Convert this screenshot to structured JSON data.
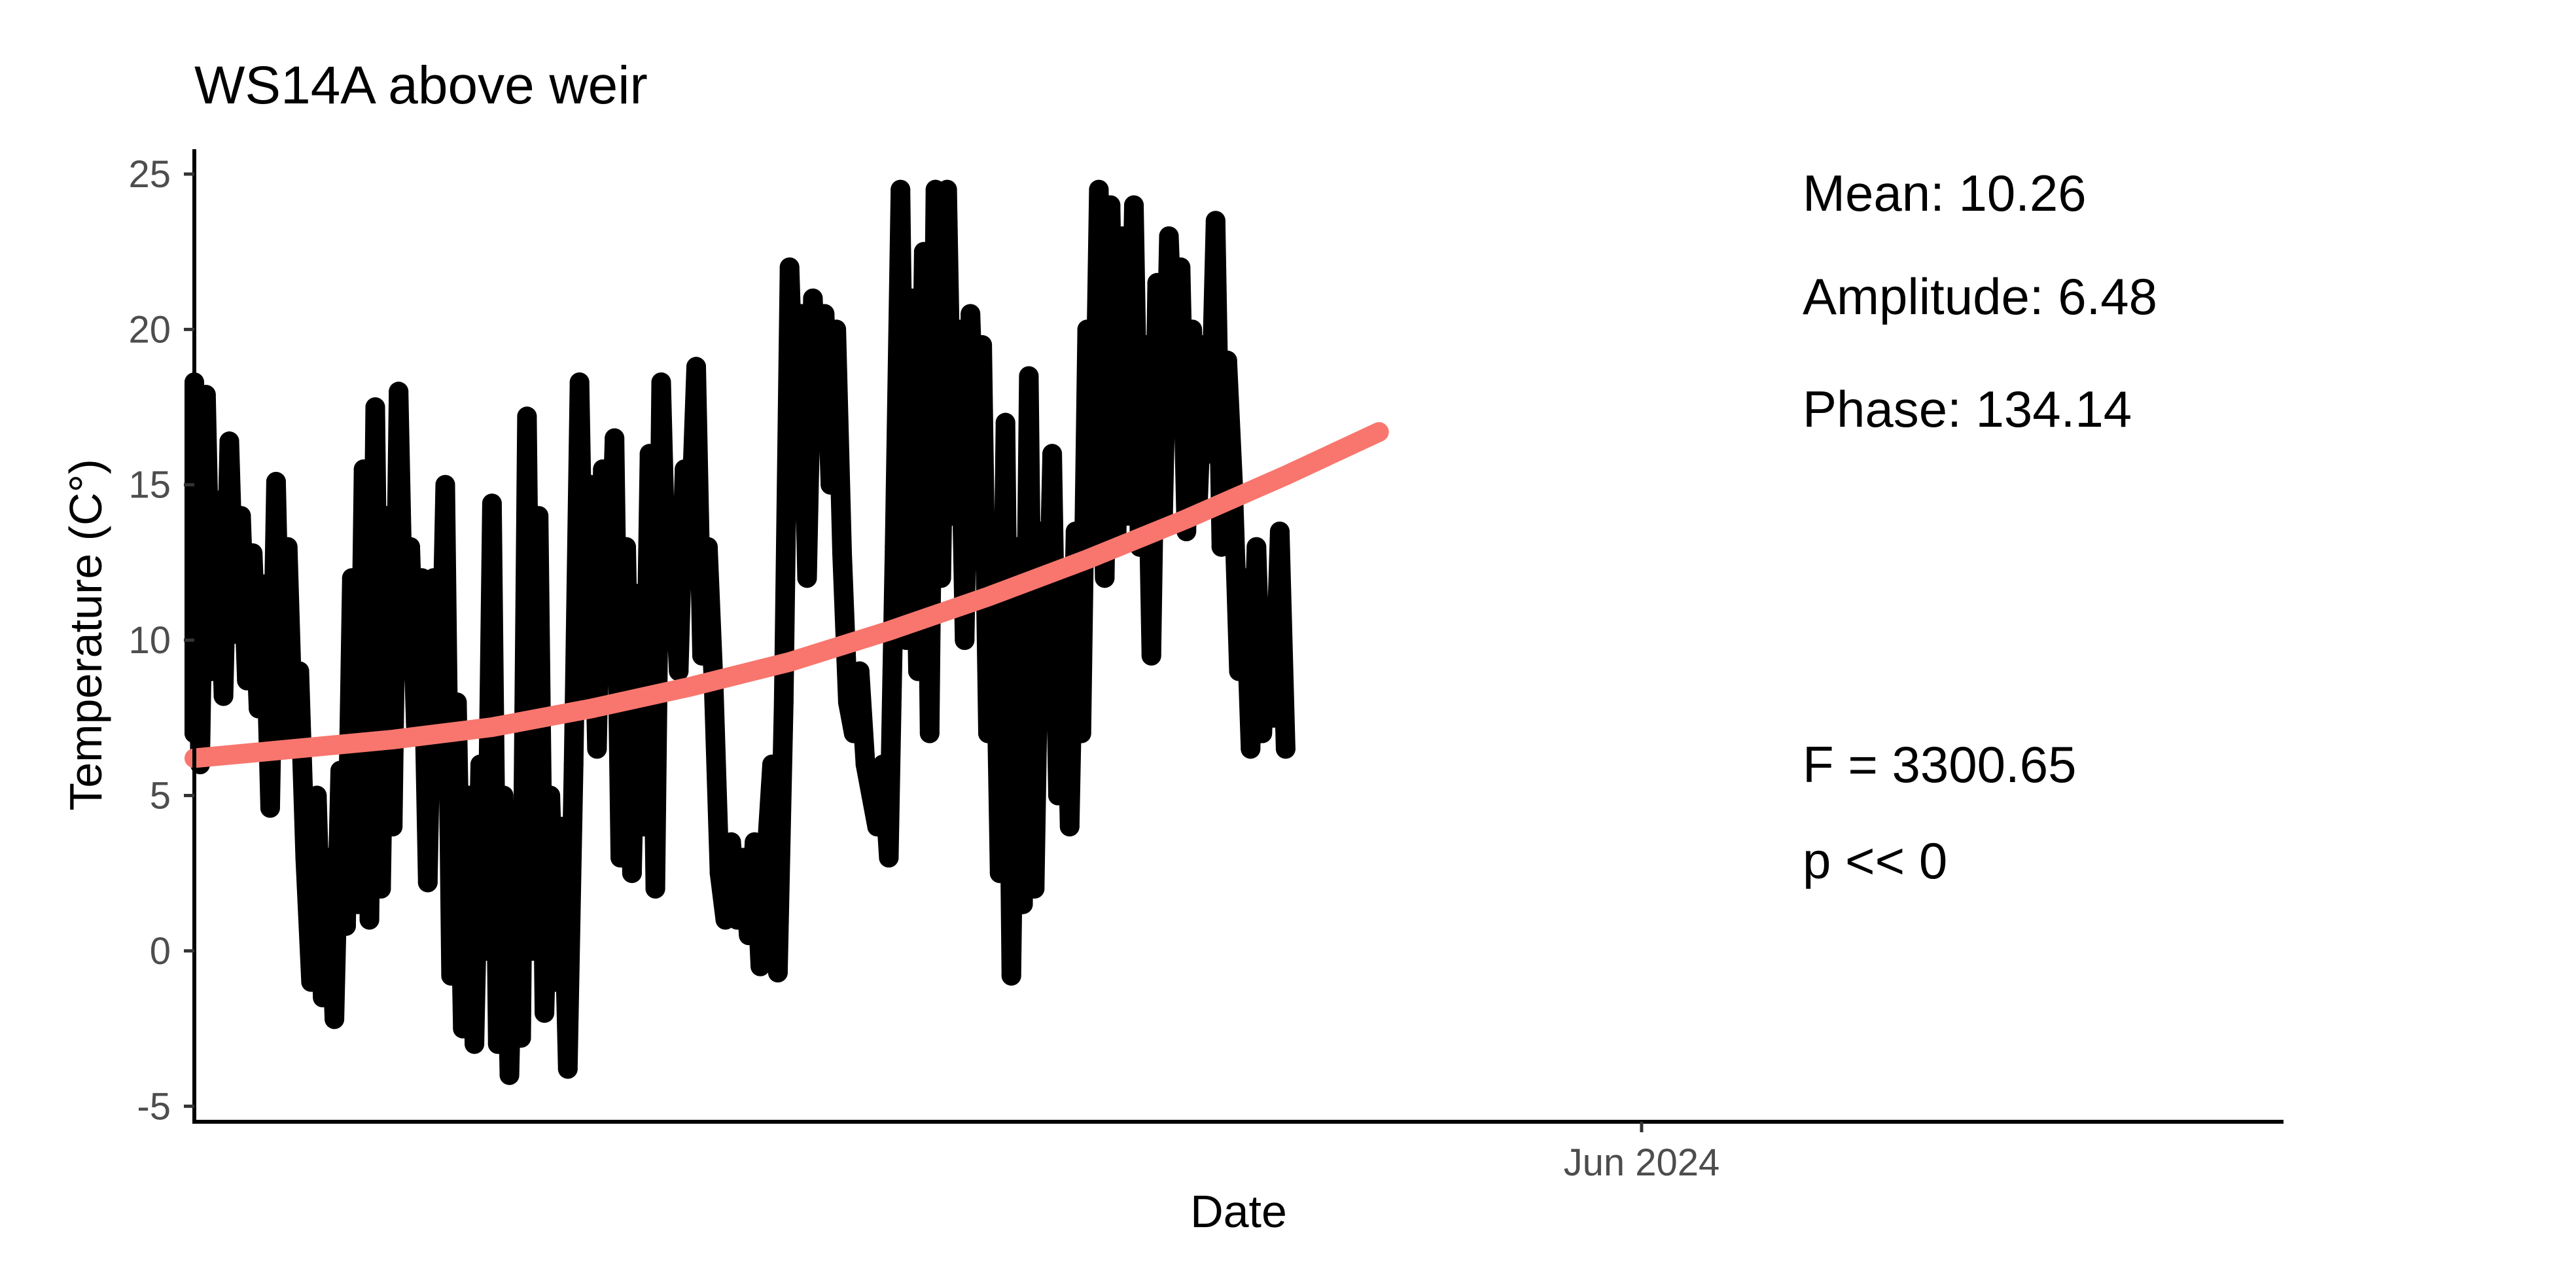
{
  "chart_data": {
    "type": "scatter",
    "title": "WS14A above weir",
    "xlabel": "Date",
    "ylabel": "Temperature (C°)",
    "x_range": [
      "2023-09-27",
      "2024-09-19"
    ],
    "ylim": [
      -5.5,
      25.8
    ],
    "yticks": [
      {
        "value": 25,
        "label": "25"
      },
      {
        "value": 20,
        "label": "20"
      },
      {
        "value": 15,
        "label": "15"
      },
      {
        "value": 10,
        "label": "10"
      },
      {
        "value": 5,
        "label": "5"
      },
      {
        "value": 0,
        "label": "0"
      },
      {
        "value": -5,
        "label": "-5"
      }
    ],
    "xticks": [
      {
        "date": "2024-06-01",
        "label": "Jun 2024"
      }
    ],
    "grid": false,
    "legend": "none",
    "colors": {
      "observations": "#000000",
      "fit": "#f8766d",
      "axis_text": "#4d4d4d"
    },
    "annotations": {
      "mean": "Mean: 10.26",
      "amplitude": "Amplitude: 6.48",
      "phase": "Phase: 134.14",
      "f_stat": "F =  3300.65",
      "p_value": "p <<  0"
    },
    "series": [
      {
        "type": "scatter",
        "points": [
          {
            "x": "2023-09-27",
            "y": 7.0
          },
          {
            "x": "2023-09-27",
            "y": 18.3
          },
          {
            "x": "2023-09-28",
            "y": 6.0
          },
          {
            "x": "2023-09-29",
            "y": 17.9
          },
          {
            "x": "2023-09-30",
            "y": 9.0
          },
          {
            "x": "2023-10-01",
            "y": 14.5
          },
          {
            "x": "2023-10-02",
            "y": 8.2
          },
          {
            "x": "2023-10-03",
            "y": 16.4
          },
          {
            "x": "2023-10-04",
            "y": 10.2
          },
          {
            "x": "2023-10-05",
            "y": 14.0
          },
          {
            "x": "2023-10-06",
            "y": 8.7
          },
          {
            "x": "2023-10-07",
            "y": 12.8
          },
          {
            "x": "2023-10-08",
            "y": 7.8
          },
          {
            "x": "2023-10-09",
            "y": 11.8
          },
          {
            "x": "2023-10-10",
            "y": 4.6
          },
          {
            "x": "2023-10-11",
            "y": 15.1
          },
          {
            "x": "2023-10-12",
            "y": 6.7
          },
          {
            "x": "2023-10-13",
            "y": 13.0
          },
          {
            "x": "2023-10-14",
            "y": 6.8
          },
          {
            "x": "2023-10-15",
            "y": 9.0
          },
          {
            "x": "2023-10-16",
            "y": 3.0
          },
          {
            "x": "2023-10-17",
            "y": -1.0
          },
          {
            "x": "2023-10-18",
            "y": 5.0
          },
          {
            "x": "2023-10-19",
            "y": -1.5
          },
          {
            "x": "2023-10-20",
            "y": 3.0
          },
          {
            "x": "2023-10-21",
            "y": -2.2
          },
          {
            "x": "2023-10-22",
            "y": 5.8
          },
          {
            "x": "2023-10-23",
            "y": 0.8
          },
          {
            "x": "2023-10-24",
            "y": 12.0
          },
          {
            "x": "2023-10-25",
            "y": 1.5
          },
          {
            "x": "2023-10-26",
            "y": 15.5
          },
          {
            "x": "2023-10-27",
            "y": 1.0
          },
          {
            "x": "2023-10-28",
            "y": 17.5
          },
          {
            "x": "2023-10-29",
            "y": 2.0
          },
          {
            "x": "2023-10-30",
            "y": 14.0
          },
          {
            "x": "2023-10-31",
            "y": 4.0
          },
          {
            "x": "2023-11-01",
            "y": 18.0
          },
          {
            "x": "2023-11-02",
            "y": 9.0
          },
          {
            "x": "2023-11-03",
            "y": 13.0
          },
          {
            "x": "2023-11-04",
            "y": 7.0
          },
          {
            "x": "2023-11-05",
            "y": 12.0
          },
          {
            "x": "2023-11-06",
            "y": 2.2
          },
          {
            "x": "2023-11-07",
            "y": 12.0
          },
          {
            "x": "2023-11-08",
            "y": 6.0
          },
          {
            "x": "2023-11-09",
            "y": 15.0
          },
          {
            "x": "2023-11-10",
            "y": -0.8
          },
          {
            "x": "2023-11-11",
            "y": 8.0
          },
          {
            "x": "2023-11-12",
            "y": -2.5
          },
          {
            "x": "2023-11-13",
            "y": 5.0
          },
          {
            "x": "2023-11-14",
            "y": -3.0
          },
          {
            "x": "2023-11-15",
            "y": 6.0
          },
          {
            "x": "2023-11-16",
            "y": 0.0
          },
          {
            "x": "2023-11-17",
            "y": 14.4
          },
          {
            "x": "2023-11-18",
            "y": -3.0
          },
          {
            "x": "2023-11-19",
            "y": 5.0
          },
          {
            "x": "2023-11-20",
            "y": -4.0
          },
          {
            "x": "2023-11-21",
            "y": 4.0
          },
          {
            "x": "2023-11-22",
            "y": -2.8
          },
          {
            "x": "2023-11-23",
            "y": 17.2
          },
          {
            "x": "2023-11-24",
            "y": 0.0
          },
          {
            "x": "2023-11-25",
            "y": 14.0
          },
          {
            "x": "2023-11-26",
            "y": -2.0
          },
          {
            "x": "2023-11-27",
            "y": 5.0
          },
          {
            "x": "2023-11-28",
            "y": -1.0
          },
          {
            "x": "2023-11-29",
            "y": 4.0
          },
          {
            "x": "2023-11-30",
            "y": -3.8
          },
          {
            "x": "2023-12-01",
            "y": 6.0
          },
          {
            "x": "2023-12-02",
            "y": 18.3
          },
          {
            "x": "2023-12-03",
            "y": 8.0
          },
          {
            "x": "2023-12-04",
            "y": 15.0
          },
          {
            "x": "2023-12-05",
            "y": 6.5
          },
          {
            "x": "2023-12-06",
            "y": 15.5
          },
          {
            "x": "2023-12-07",
            "y": 10.0
          },
          {
            "x": "2023-12-08",
            "y": 16.5
          },
          {
            "x": "2023-12-09",
            "y": 3.0
          },
          {
            "x": "2023-12-10",
            "y": 13.0
          },
          {
            "x": "2023-12-11",
            "y": 2.5
          },
          {
            "x": "2023-12-12",
            "y": 11.5
          },
          {
            "x": "2023-12-13",
            "y": 4.0
          },
          {
            "x": "2023-12-14",
            "y": 16.0
          },
          {
            "x": "2023-12-15",
            "y": 2.0
          },
          {
            "x": "2023-12-16",
            "y": 18.3
          },
          {
            "x": "2023-12-17",
            "y": 11.0
          },
          {
            "x": "2023-12-18",
            "y": 13.0
          },
          {
            "x": "2023-12-19",
            "y": 9.0
          },
          {
            "x": "2023-12-20",
            "y": 15.5
          },
          {
            "x": "2023-12-21",
            "y": 13.5
          },
          {
            "x": "2023-12-22",
            "y": 18.8
          },
          {
            "x": "2023-12-23",
            "y": 9.5
          },
          {
            "x": "2023-12-24",
            "y": 13.0
          },
          {
            "x": "2023-12-25",
            "y": 8.5
          },
          {
            "x": "2023-12-26",
            "y": 2.5
          },
          {
            "x": "2023-12-27",
            "y": 1.0
          },
          {
            "x": "2023-12-28",
            "y": 3.5
          },
          {
            "x": "2023-12-29",
            "y": 1.0
          },
          {
            "x": "2023-12-30",
            "y": 3.0
          },
          {
            "x": "2023-12-31",
            "y": 0.5
          },
          {
            "x": "2024-01-01",
            "y": 3.5
          },
          {
            "x": "2024-01-02",
            "y": -0.5
          },
          {
            "x": "2024-01-03",
            "y": 3.0
          },
          {
            "x": "2024-01-04",
            "y": 6.0
          },
          {
            "x": "2024-01-05",
            "y": -0.7
          },
          {
            "x": "2024-01-06",
            "y": 8.0
          },
          {
            "x": "2024-01-07",
            "y": 22.0
          },
          {
            "x": "2024-01-08",
            "y": 16.0
          },
          {
            "x": "2024-01-09",
            "y": 20.5
          },
          {
            "x": "2024-01-10",
            "y": 12.0
          },
          {
            "x": "2024-01-11",
            "y": 21.0
          },
          {
            "x": "2024-01-12",
            "y": 16.5
          },
          {
            "x": "2024-01-13",
            "y": 20.5
          },
          {
            "x": "2024-01-14",
            "y": 15.0
          },
          {
            "x": "2024-01-15",
            "y": 20.0
          },
          {
            "x": "2024-01-16",
            "y": 12.8
          },
          {
            "x": "2024-01-17",
            "y": 8.0
          },
          {
            "x": "2024-01-18",
            "y": 7.0
          },
          {
            "x": "2024-01-19",
            "y": 9.0
          },
          {
            "x": "2024-01-20",
            "y": 6.0
          },
          {
            "x": "2024-01-21",
            "y": 5.0
          },
          {
            "x": "2024-01-22",
            "y": 4.0
          },
          {
            "x": "2024-01-23",
            "y": 6.0
          },
          {
            "x": "2024-01-24",
            "y": 3.0
          },
          {
            "x": "2024-01-25",
            "y": 13.0
          },
          {
            "x": "2024-01-26",
            "y": 24.5
          },
          {
            "x": "2024-01-27",
            "y": 10.0
          },
          {
            "x": "2024-01-28",
            "y": 21.0
          },
          {
            "x": "2024-01-29",
            "y": 9.0
          },
          {
            "x": "2024-01-30",
            "y": 22.5
          },
          {
            "x": "2024-01-31",
            "y": 7.0
          },
          {
            "x": "2024-02-01",
            "y": 24.5
          },
          {
            "x": "2024-02-02",
            "y": 12.0
          },
          {
            "x": "2024-02-03",
            "y": 24.5
          },
          {
            "x": "2024-02-04",
            "y": 14.0
          },
          {
            "x": "2024-02-05",
            "y": 20.0
          },
          {
            "x": "2024-02-06",
            "y": 10.0
          },
          {
            "x": "2024-02-07",
            "y": 20.5
          },
          {
            "x": "2024-02-08",
            "y": 15.0
          },
          {
            "x": "2024-02-09",
            "y": 19.5
          },
          {
            "x": "2024-02-10",
            "y": 7.0
          },
          {
            "x": "2024-02-11",
            "y": 13.5
          },
          {
            "x": "2024-02-12",
            "y": 2.5
          },
          {
            "x": "2024-02-13",
            "y": 17.0
          },
          {
            "x": "2024-02-14",
            "y": -0.8
          },
          {
            "x": "2024-02-15",
            "y": 13.0
          },
          {
            "x": "2024-02-16",
            "y": 1.5
          },
          {
            "x": "2024-02-17",
            "y": 18.5
          },
          {
            "x": "2024-02-18",
            "y": 2.0
          },
          {
            "x": "2024-02-19",
            "y": 13.5
          },
          {
            "x": "2024-02-20",
            "y": 8.0
          },
          {
            "x": "2024-02-21",
            "y": 16.0
          },
          {
            "x": "2024-02-22",
            "y": 5.0
          },
          {
            "x": "2024-02-23",
            "y": 12.0
          },
          {
            "x": "2024-02-24",
            "y": 4.0
          },
          {
            "x": "2024-02-25",
            "y": 13.5
          },
          {
            "x": "2024-02-26",
            "y": 7.0
          },
          {
            "x": "2024-02-27",
            "y": 20.0
          },
          {
            "x": "2024-02-28",
            "y": 13.0
          },
          {
            "x": "2024-02-29",
            "y": 24.5
          },
          {
            "x": "2024-03-01",
            "y": 12.0
          },
          {
            "x": "2024-03-02",
            "y": 24.0
          },
          {
            "x": "2024-03-03",
            "y": 13.0
          },
          {
            "x": "2024-03-04",
            "y": 23.0
          },
          {
            "x": "2024-03-05",
            "y": 14.0
          },
          {
            "x": "2024-03-06",
            "y": 24.0
          },
          {
            "x": "2024-03-07",
            "y": 13.0
          },
          {
            "x": "2024-03-08",
            "y": 19.5
          },
          {
            "x": "2024-03-09",
            "y": 9.5
          },
          {
            "x": "2024-03-10",
            "y": 21.5
          },
          {
            "x": "2024-03-11",
            "y": 14.0
          },
          {
            "x": "2024-03-12",
            "y": 23.0
          },
          {
            "x": "2024-03-13",
            "y": 18.0
          },
          {
            "x": "2024-03-14",
            "y": 22.0
          },
          {
            "x": "2024-03-15",
            "y": 13.5
          },
          {
            "x": "2024-03-16",
            "y": 20.0
          },
          {
            "x": "2024-03-17",
            "y": 14.5
          },
          {
            "x": "2024-03-18",
            "y": 19.5
          },
          {
            "x": "2024-03-19",
            "y": 16.0
          },
          {
            "x": "2024-03-20",
            "y": 23.5
          },
          {
            "x": "2024-03-21",
            "y": 13.0
          },
          {
            "x": "2024-03-22",
            "y": 19.0
          },
          {
            "x": "2024-03-23",
            "y": 15.0
          },
          {
            "x": "2024-03-24",
            "y": 9.0
          },
          {
            "x": "2024-03-25",
            "y": 12.0
          },
          {
            "x": "2024-03-26",
            "y": 6.5
          },
          {
            "x": "2024-03-27",
            "y": 13.0
          },
          {
            "x": "2024-03-28",
            "y": 7.0
          },
          {
            "x": "2024-03-29",
            "y": 11.0
          },
          {
            "x": "2024-03-30",
            "y": 7.5
          },
          {
            "x": "2024-03-31",
            "y": 13.5
          },
          {
            "x": "2024-04-01",
            "y": 6.5
          }
        ]
      },
      {
        "type": "line",
        "name": "",
        "points": [
          {
            "x": "2023-09-27",
            "y": 6.2
          },
          {
            "x": "2023-10-14",
            "y": 6.5
          },
          {
            "x": "2023-10-31",
            "y": 6.8
          },
          {
            "x": "2023-11-17",
            "y": 7.2
          },
          {
            "x": "2023-12-04",
            "y": 7.8
          },
          {
            "x": "2023-12-21",
            "y": 8.5
          },
          {
            "x": "2024-01-07",
            "y": 9.3
          },
          {
            "x": "2024-01-24",
            "y": 10.3
          },
          {
            "x": "2024-02-10",
            "y": 11.4
          },
          {
            "x": "2024-02-27",
            "y": 12.6
          },
          {
            "x": "2024-03-15",
            "y": 13.9
          },
          {
            "x": "2024-04-01",
            "y": 15.3
          },
          {
            "x": "2024-04-17",
            "y": 16.7
          }
        ]
      }
    ]
  }
}
